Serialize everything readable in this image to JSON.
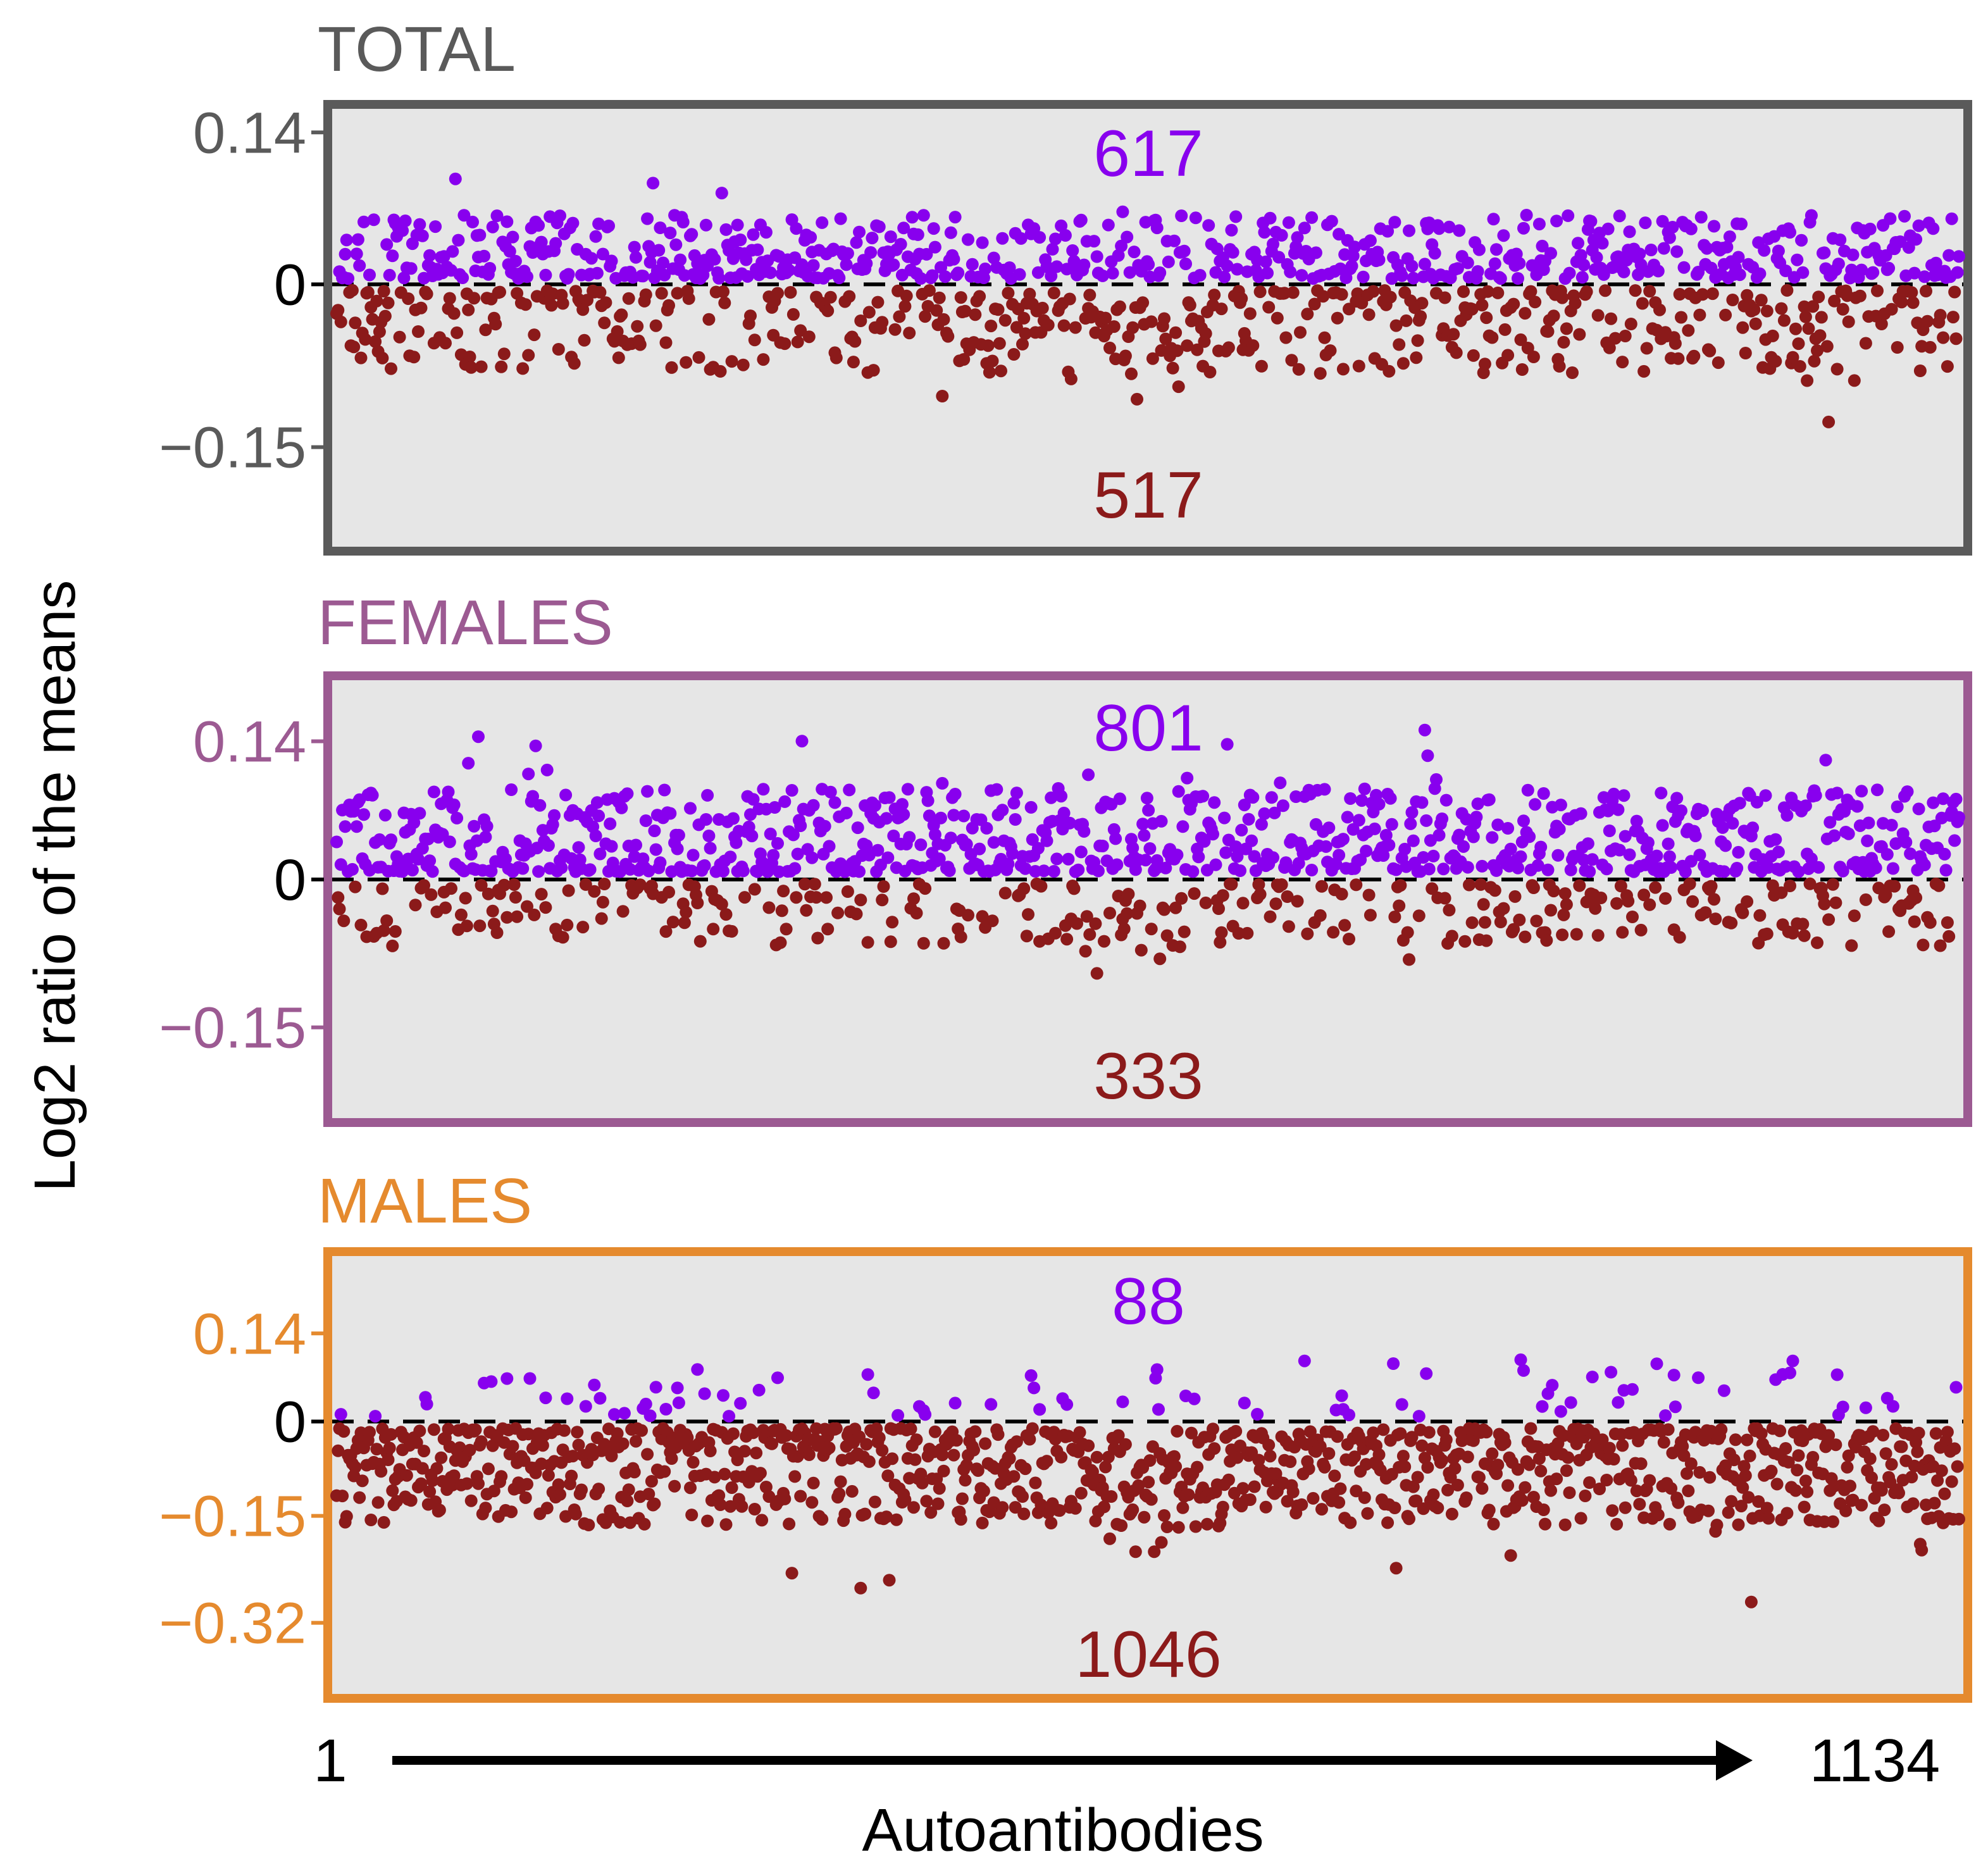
{
  "chart_data": {
    "type": "scatter",
    "ylabel": "Log2 ratio of the means",
    "xlabel": "Autoantibodies",
    "x_range_labels": {
      "start": "1",
      "end": "1134"
    },
    "x_range": [
      1,
      1134
    ],
    "colors": {
      "positive": "#8800ee",
      "negative": "#8b1a1a",
      "background": "#e6e6e6",
      "zero_line": "#000000"
    },
    "panels": [
      {
        "id": "total",
        "title": "TOTAL",
        "color": "#5a5a5a",
        "yticks": [
          {
            "label": "0.14",
            "value": 0.14
          },
          {
            "label": "0",
            "value": 0
          },
          {
            "label": "−0.15",
            "value": -0.15
          }
        ],
        "ylim": [
          -0.24,
          0.16
        ],
        "positive_count": "617",
        "negative_count": "517",
        "spread": {
          "pos": 0.045,
          "neg": 0.055,
          "neg_dip_center": 560,
          "neg_dip_depth": 0.04
        },
        "seed": 11
      },
      {
        "id": "females",
        "title": "FEMALES",
        "color": "#9c5a92",
        "yticks": [
          {
            "label": "0.14",
            "value": 0.14
          },
          {
            "label": "0",
            "value": 0
          },
          {
            "label": "−0.15",
            "value": -0.15
          }
        ],
        "ylim": [
          -0.24,
          0.2
        ],
        "positive_count": "801",
        "negative_count": "333",
        "spread": {
          "pos": 0.065,
          "neg": 0.045,
          "neg_dip_center": 560,
          "neg_dip_depth": 0.03
        },
        "seed": 23
      },
      {
        "id": "males",
        "title": "MALES",
        "color": "#e58a2e",
        "yticks": [
          {
            "label": "0.14",
            "value": 0.14
          },
          {
            "label": "0",
            "value": 0
          },
          {
            "label": "−0.15",
            "value": -0.15
          },
          {
            "label": "−0.32",
            "value": -0.32
          }
        ],
        "ylim": [
          -0.43,
          0.26
        ],
        "positive_count": "88",
        "negative_count": "1046",
        "spread": {
          "pos": 0.07,
          "neg": 0.11,
          "neg_dip_center": 560,
          "neg_dip_depth": 0.06
        },
        "seed": 37
      }
    ]
  }
}
